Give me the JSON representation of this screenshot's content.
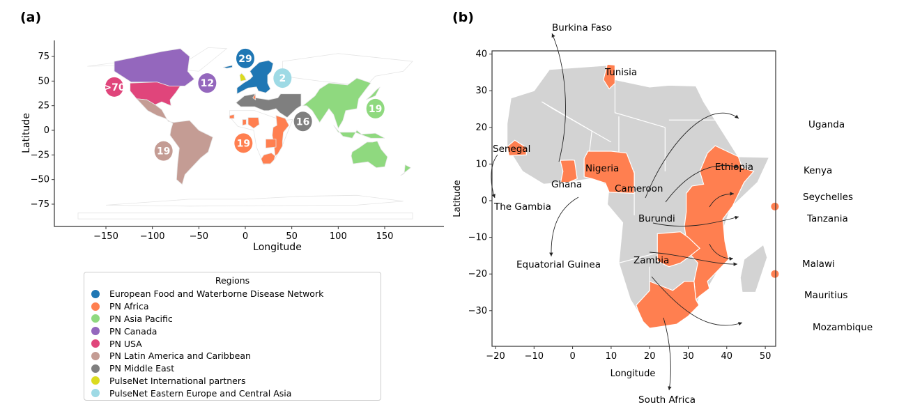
{
  "panel_a": {
    "label": "(a)",
    "xlabel": "Longitude",
    "ylabel": "Latitude",
    "xticks": [
      -150,
      -100,
      -50,
      0,
      50,
      100,
      150
    ],
    "yticks": [
      75,
      50,
      25,
      0,
      -25,
      -50,
      -75
    ],
    "bubbles": [
      {
        "text": "29",
        "lon": 0,
        "lat": 73,
        "color": "#1f77b4"
      },
      {
        "text": "2",
        "lon": 40,
        "lat": 53,
        "color": "#9edae5"
      },
      {
        "text": ">70",
        "lon": -141,
        "lat": 44,
        "color": "#e0457b"
      },
      {
        "text": "12",
        "lon": -41,
        "lat": 48,
        "color": "#9467bd"
      },
      {
        "text": "19",
        "lon": 140,
        "lat": 22,
        "color": "#8fd97f"
      },
      {
        "text": "16",
        "lon": 62,
        "lat": 9,
        "color": "#7f7f7f"
      },
      {
        "text": "19",
        "lon": -2,
        "lat": -13,
        "color": "#ff7f50"
      },
      {
        "text": "19",
        "lon": -88,
        "lat": -21,
        "color": "#c49c94"
      }
    ]
  },
  "legend": {
    "title": "Regions",
    "items": [
      {
        "label": "European Food and Waterborne Disease Network",
        "color": "#1f77b4"
      },
      {
        "label": "PN Africa",
        "color": "#ff7f50"
      },
      {
        "label": "PN Asia Pacific",
        "color": "#8fd97f"
      },
      {
        "label": "PN Canada",
        "color": "#9467bd"
      },
      {
        "label": "PN USA",
        "color": "#e0457b"
      },
      {
        "label": "PN Latin America and Caribbean",
        "color": "#c49c94"
      },
      {
        "label": "PN Middle East",
        "color": "#7f7f7f"
      },
      {
        "label": "PulseNet International partners",
        "color": "#dbdb1f"
      },
      {
        "label": "PulseNet Eastern Europe and Central Asia",
        "color": "#9edae5"
      }
    ]
  },
  "panel_b": {
    "label": "(b)",
    "xlabel": "Longitude",
    "ylabel": "Latitude",
    "xticks": [
      -20,
      -10,
      0,
      10,
      20,
      30,
      40,
      50
    ],
    "yticks": [
      40,
      30,
      20,
      10,
      0,
      -10,
      -20,
      -30
    ],
    "countries": [
      "Burkina Faso",
      "Tunisia",
      "Senegal",
      "The Gambia",
      "Ghana",
      "Nigeria",
      "Cameroon",
      "Equatorial Guinea",
      "Ethiopia",
      "Uganda",
      "Kenya",
      "Seychelles",
      "Burundi",
      "Tanzania",
      "Zambia",
      "Malawi",
      "Mauritius",
      "Mozambique",
      "South Africa"
    ]
  }
}
